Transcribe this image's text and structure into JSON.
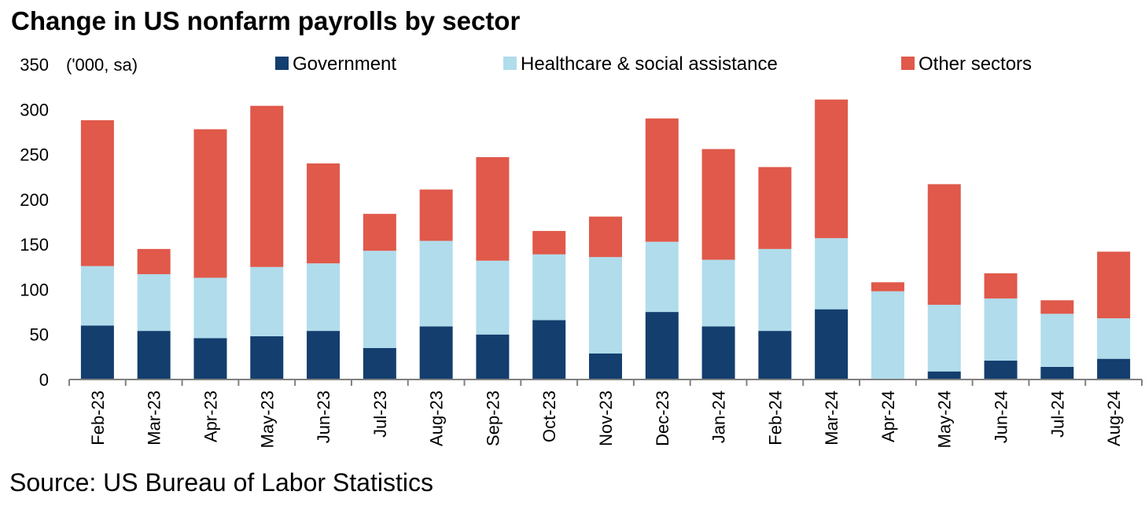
{
  "chart_data": {
    "type": "bar",
    "stacked": true,
    "title": "Change in US nonfarm payrolls by sector",
    "ylabel": "('000, sa)",
    "xlabel": "",
    "ylim": [
      0,
      350
    ],
    "yticks": [
      0,
      50,
      100,
      150,
      200,
      250,
      300,
      350
    ],
    "grid": false,
    "legend_position": "top",
    "categories": [
      "Feb-23",
      "Mar-23",
      "Apr-23",
      "May-23",
      "Jun-23",
      "Jul-23",
      "Aug-23",
      "Sep-23",
      "Oct-23",
      "Nov-23",
      "Dec-23",
      "Jan-24",
      "Feb-24",
      "Mar-24",
      "Apr-24",
      "May-24",
      "Jun-24",
      "Jul-24",
      "Aug-24"
    ],
    "series": [
      {
        "name": "Government",
        "color": "#133e6e",
        "values": [
          60,
          54,
          46,
          48,
          54,
          35,
          59,
          50,
          66,
          29,
          75,
          59,
          54,
          78,
          0,
          9,
          21,
          14,
          23
        ]
      },
      {
        "name": "Healthcare & social assistance",
        "color": "#b0dcec",
        "values": [
          66,
          63,
          67,
          77,
          75,
          108,
          95,
          82,
          73,
          107,
          78,
          74,
          91,
          79,
          98,
          74,
          69,
          59,
          45
        ]
      },
      {
        "name": "Other sectors",
        "color": "#e0594a",
        "values": [
          162,
          28,
          165,
          179,
          111,
          41,
          57,
          115,
          26,
          45,
          137,
          123,
          91,
          154,
          10,
          134,
          28,
          15,
          74
        ]
      }
    ]
  },
  "source": "Source: US Bureau of Labor Statistics"
}
